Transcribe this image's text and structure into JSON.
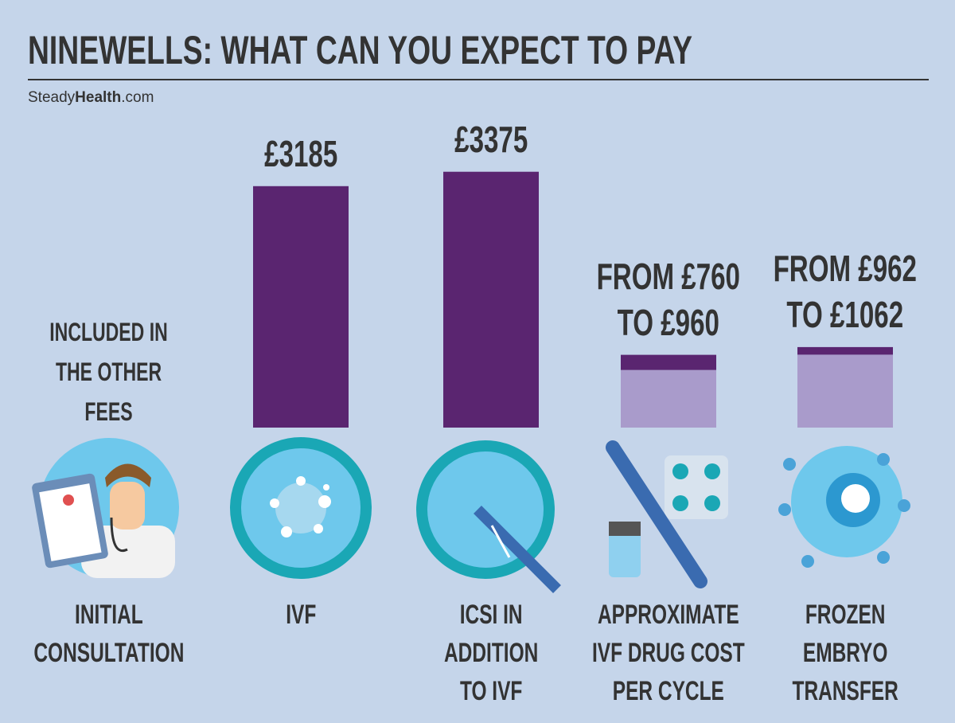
{
  "chart_data": {
    "type": "range-bar",
    "title": "NINEWELLS: WHAT CAN YOU EXPECT TO PAY",
    "source": {
      "prefix": "Steady",
      "brand": "Health",
      "suffix": ".com"
    },
    "categories": [
      "INITIAL CONSULTATION",
      "IVF",
      "ICSI IN ADDITION TO IVF",
      "APPROXIMATE IVF DRUG COST PER CYCLE",
      "FROZEN EMBRYO TRANSFER"
    ],
    "low": [
      null,
      null,
      null,
      760,
      962
    ],
    "values": [
      null,
      3185,
      3375,
      960,
      1062
    ],
    "value_labels": [
      null,
      "£3185",
      "£3375",
      "FROM £760 TO £960",
      "FROM £962 TO £1062"
    ],
    "note": "INCLUDED IN THE OTHER FEES",
    "color": "#5a2570",
    "low_color": "#a99bcb"
  }
}
